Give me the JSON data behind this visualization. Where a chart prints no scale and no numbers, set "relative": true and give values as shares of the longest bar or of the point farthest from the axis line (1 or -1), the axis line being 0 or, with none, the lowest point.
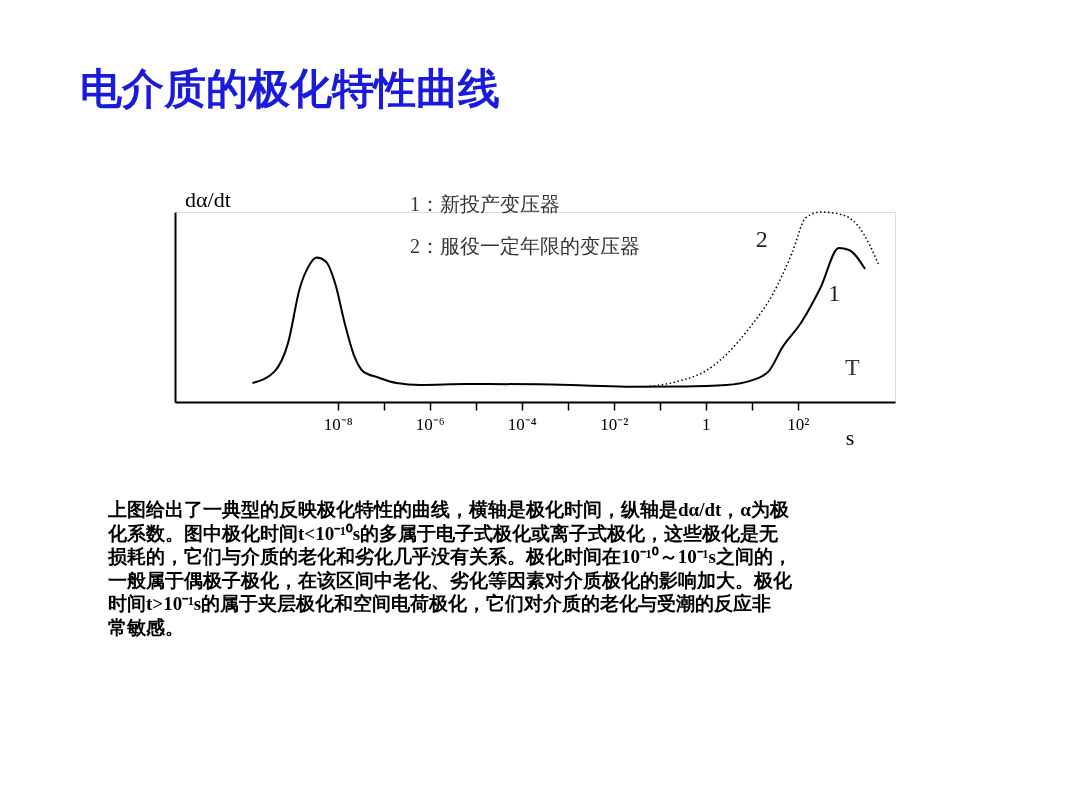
{
  "chart_data": {
    "type": "line",
    "title": "电介质的极化特性曲线",
    "ylabel": "dα/dt",
    "xlabel": "s",
    "relative": true,
    "log": "x",
    "grid": false,
    "legend": false,
    "marker": "none",
    "xlim": [
      2.9e-12,
      13000
    ],
    "xticks": [
      {
        "value": 1e-08,
        "label": "10⁻⁸"
      },
      {
        "value": 1e-07,
        "label": null
      },
      {
        "value": 1e-06,
        "label": "10⁻⁶"
      },
      {
        "value": 1e-05,
        "label": null
      },
      {
        "value": 0.0001,
        "label": "10⁻⁴"
      },
      {
        "value": 0.001,
        "label": null
      },
      {
        "value": 0.01,
        "label": "10⁻²"
      },
      {
        "value": 0.1,
        "label": null
      },
      {
        "value": 1,
        "label": "1"
      },
      {
        "value": 10,
        "label": null
      },
      {
        "value": 100,
        "label": "10²"
      }
    ],
    "series": [
      {
        "name": "1",
        "color": "#000000",
        "line_style": "solid",
        "x": [
          1.4e-10,
          4.2e-10,
          8.3e-10,
          1.5e-09,
          2.4e-09,
          3.5e-09,
          5.5e-09,
          8.9e-09,
          1.4e-08,
          2.3e-08,
          3.6e-08,
          7.4e-08,
          1.9e-07,
          6.2e-07,
          6.5e-06,
          0.00022,
          0.0023,
          0.025,
          0.26,
          2.8,
          8.9,
          23,
          47,
          120,
          310,
          780,
          1300,
          2900
        ],
        "values": [
          0.1,
          0.16,
          0.31,
          0.6,
          0.72,
          0.76,
          0.74,
          0.62,
          0.42,
          0.24,
          0.16,
          0.13,
          0.1,
          0.09,
          0.095,
          0.093,
          0.087,
          0.08,
          0.082,
          0.09,
          0.11,
          0.16,
          0.29,
          0.42,
          0.6,
          0.81,
          0.8,
          0.7
        ]
      },
      {
        "name": "2",
        "color": "#000000",
        "line_style": "dotted",
        "x": [
          0.05,
          0.26,
          1.1,
          2.8,
          8.9,
          29,
          74,
          150,
          310,
          780,
          2000,
          3600,
          5800
        ],
        "values": [
          0.08,
          0.11,
          0.17,
          0.25,
          0.39,
          0.57,
          0.78,
          0.97,
          1.0,
          0.99,
          0.93,
          0.83,
          0.72
        ]
      }
    ],
    "annotations": [
      "1：新投产变压器",
      "2：服役一定年限的变压器",
      "T",
      "上图给出了一典型的反映极化特性的曲线，横轴是极化时间，纵轴是dα/dt，α为极化系数。图中极化时间t<10⁻¹⁰s的多属于电子式极化或离子式极化，这些极化是无损耗的，它们与介质的老化和劣化几乎没有关系。极化时间在10⁻¹⁰～10⁻¹s之间的，一般属于偶极子极化，在该区间中老化、劣化等因素对介质极化的影响加大。极化时间t>10⁻¹s的属于夹层极化和空间电荷极化，它们对介质的老化与受潮的反应非常敏感。"
    ]
  }
}
